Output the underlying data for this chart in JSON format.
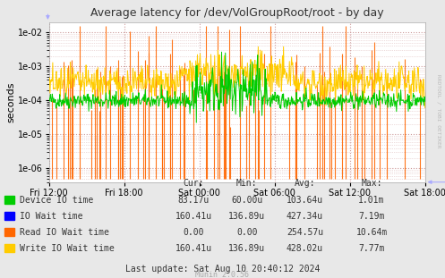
{
  "title": "Average latency for /dev/VolGroupRoot/root - by day",
  "ylabel": "seconds",
  "bg_color": "#e8e8e8",
  "plot_bg_color": "#ffffff",
  "grid_color_major": "#cc9999",
  "grid_color_minor": "#ddbbbb",
  "xtick_labels": [
    "Fri 12:00",
    "Fri 18:00",
    "Sat 00:00",
    "Sat 06:00",
    "Sat 12:00",
    "Sat 18:00"
  ],
  "legend_entries": [
    {
      "label": "Device IO time",
      "color": "#00cc00"
    },
    {
      "label": "IO Wait time",
      "color": "#0000ff"
    },
    {
      "label": "Read IO Wait time",
      "color": "#ff6600"
    },
    {
      "label": "Write IO Wait time",
      "color": "#ffcc00"
    }
  ],
  "legend_stats": {
    "headers": [
      "Cur:",
      "Min:",
      "Avg:",
      "Max:"
    ],
    "rows": [
      [
        "83.17u",
        "60.00u",
        "103.64u",
        "1.01m"
      ],
      [
        "160.41u",
        "136.89u",
        "427.34u",
        "7.19m"
      ],
      [
        "0.00",
        "0.00",
        "254.57u",
        "10.64m"
      ],
      [
        "160.41u",
        "136.89u",
        "428.02u",
        "7.77m"
      ]
    ]
  },
  "last_update": "Last update: Sat Aug 10 20:40:12 2024",
  "munin_version": "Munin 2.0.56",
  "rrdtool_label": "RRDTOOL / TOBI OETIKER",
  "seed": 42,
  "n_points": 700
}
